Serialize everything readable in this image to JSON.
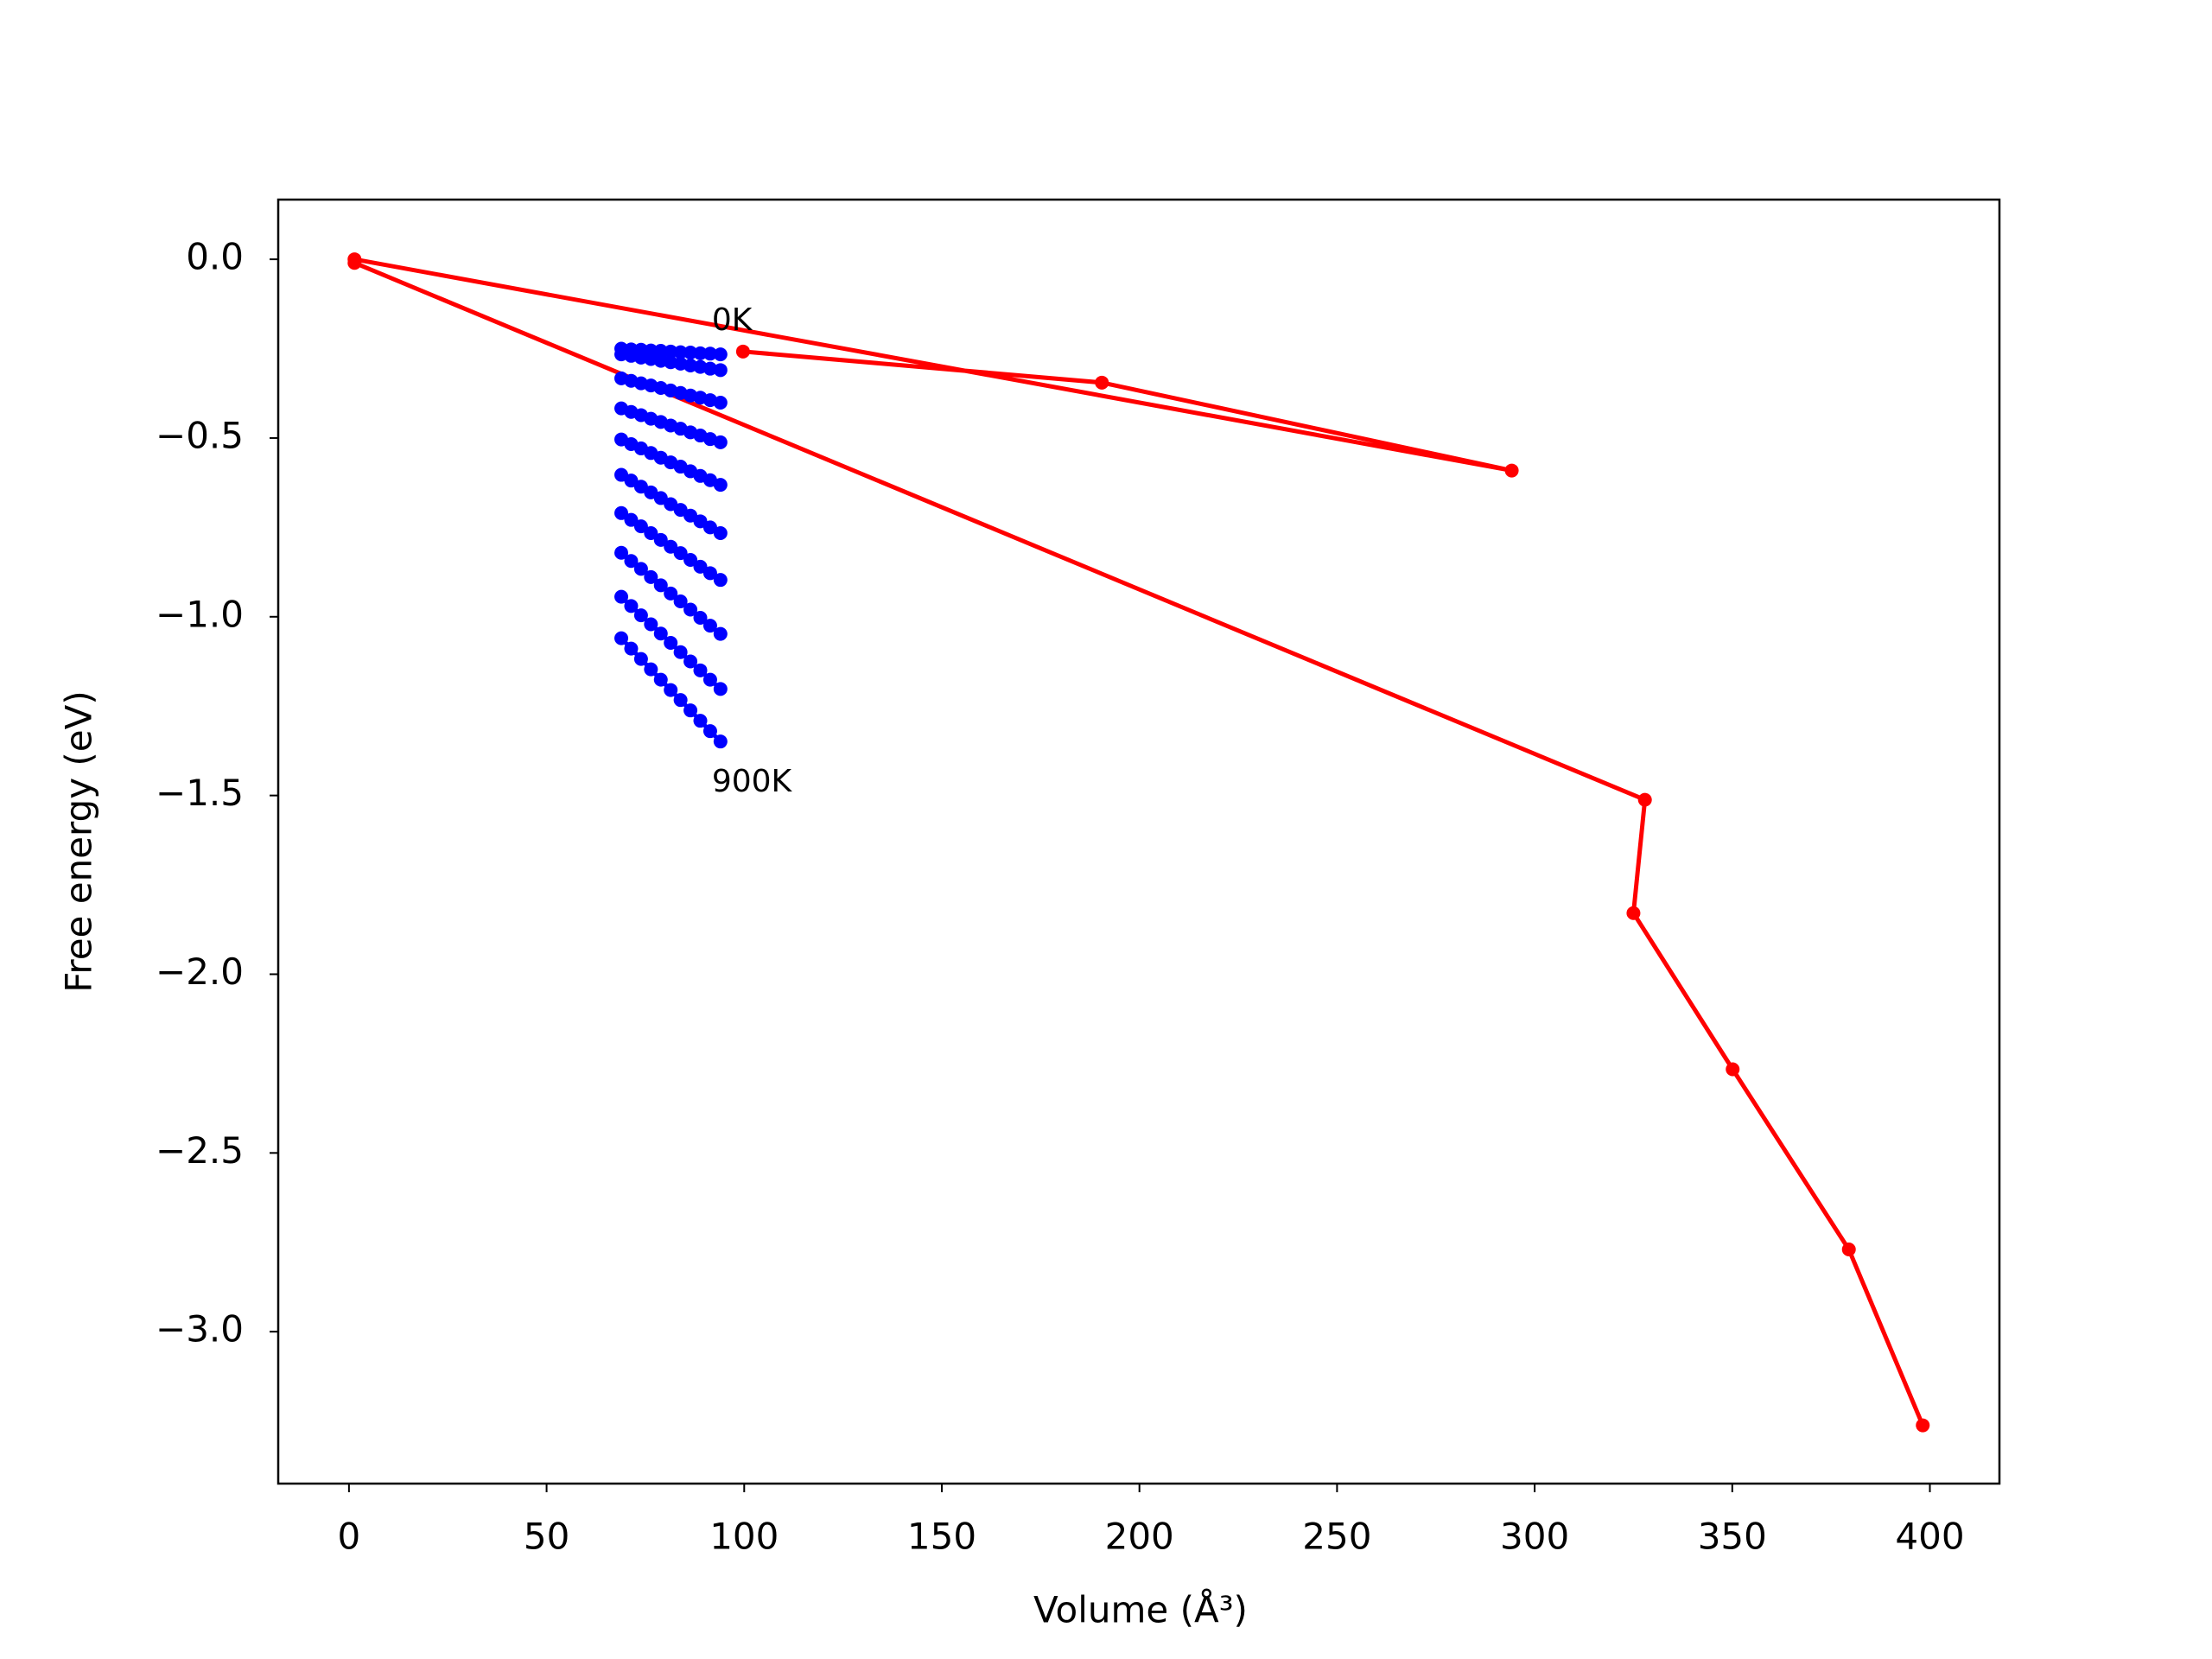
{
  "chart_data": {
    "type": "line",
    "x_label": "Volume (Å³)",
    "y_label": "Free energy (eV)",
    "xlim": [
      -17.9,
      417.6
    ],
    "ylim": [
      -3.425,
      0.167
    ],
    "xticks": [
      0,
      50,
      100,
      150,
      200,
      250,
      300,
      350,
      400
    ],
    "yticks": [
      {
        "value": 0,
        "label": "0.0"
      },
      {
        "value": -0.5,
        "label": "−0.5"
      },
      {
        "value": -1,
        "label": "−1.0"
      },
      {
        "value": -1.5,
        "label": "−1.5"
      },
      {
        "value": -2,
        "label": "−2.0"
      },
      {
        "value": -2.5,
        "label": "−2.5"
      },
      {
        "value": -3,
        "label": "−3.0"
      }
    ],
    "annotations": [
      "0K",
      "900K"
    ],
    "series": [
      {
        "color": "#ff0000",
        "x": [
          99.7,
          190.5,
          294.2,
          1.4,
          1.4,
          327.9,
          325.0,
          350.1,
          379.5,
          398.2
        ],
        "values": [
          -0.258,
          -0.345,
          -0.591,
          0,
          -0.01,
          -1.512,
          -1.829,
          -2.266,
          -2.77,
          -3.262
        ]
      },
      {
        "color": "#0000ff",
        "x": [
          68.9,
          71.4,
          73.9,
          76.4,
          78.9,
          81.4,
          83.9,
          86.4,
          88.9,
          91.4,
          94.0
        ],
        "values": [
          -0.25,
          -0.252,
          -0.253,
          -0.255,
          -0.256,
          -0.258,
          -0.26,
          -0.261,
          -0.263,
          -0.264,
          -0.266
        ]
      },
      {
        "color": "#0000ff",
        "x": [
          68.9,
          71.4,
          73.9,
          76.4,
          78.9,
          81.4,
          83.9,
          86.4,
          88.9,
          91.4,
          94.0
        ],
        "values": [
          -0.266,
          -0.27,
          -0.275,
          -0.279,
          -0.284,
          -0.288,
          -0.292,
          -0.297,
          -0.301,
          -0.306,
          -0.31
        ]
      },
      {
        "color": "#0000ff",
        "x": [
          68.9,
          71.4,
          73.9,
          76.4,
          78.9,
          81.4,
          83.9,
          86.4,
          88.9,
          91.4,
          94.0
        ],
        "values": [
          -0.333,
          -0.34,
          -0.347,
          -0.353,
          -0.36,
          -0.367,
          -0.374,
          -0.381,
          -0.387,
          -0.394,
          -0.401
        ]
      },
      {
        "color": "#0000ff",
        "x": [
          68.9,
          71.4,
          73.9,
          76.4,
          78.9,
          81.4,
          83.9,
          86.4,
          88.9,
          91.4,
          94.0
        ],
        "values": [
          -0.417,
          -0.427,
          -0.436,
          -0.446,
          -0.455,
          -0.465,
          -0.474,
          -0.484,
          -0.493,
          -0.503,
          -0.512
        ]
      },
      {
        "color": "#0000ff",
        "x": [
          68.9,
          71.4,
          73.9,
          76.4,
          78.9,
          81.4,
          83.9,
          86.4,
          88.9,
          91.4,
          94.0
        ],
        "values": [
          -0.504,
          -0.517,
          -0.529,
          -0.542,
          -0.555,
          -0.568,
          -0.58,
          -0.593,
          -0.606,
          -0.618,
          -0.631
        ]
      },
      {
        "color": "#0000ff",
        "x": [
          68.9,
          71.4,
          73.9,
          76.4,
          78.9,
          81.4,
          83.9,
          86.4,
          88.9,
          91.4,
          94.0
        ],
        "values": [
          -0.603,
          -0.619,
          -0.636,
          -0.652,
          -0.668,
          -0.685,
          -0.701,
          -0.717,
          -0.733,
          -0.75,
          -0.766
        ]
      },
      {
        "color": "#0000ff",
        "x": [
          68.9,
          71.4,
          73.9,
          76.4,
          78.9,
          81.4,
          83.9,
          86.4,
          88.9,
          91.4,
          94.0
        ],
        "values": [
          -0.71,
          -0.729,
          -0.747,
          -0.766,
          -0.785,
          -0.804,
          -0.822,
          -0.841,
          -0.86,
          -0.878,
          -0.897
        ]
      },
      {
        "color": "#0000ff",
        "x": [
          68.9,
          71.4,
          73.9,
          76.4,
          78.9,
          81.4,
          83.9,
          86.4,
          88.9,
          91.4,
          94.0
        ],
        "values": [
          -0.821,
          -0.844,
          -0.866,
          -0.889,
          -0.912,
          -0.935,
          -0.957,
          -0.98,
          -1.003,
          -1.025,
          -1.048
        ]
      },
      {
        "color": "#0000ff",
        "x": [
          68.9,
          71.4,
          73.9,
          76.4,
          78.9,
          81.4,
          83.9,
          86.4,
          88.9,
          91.4,
          94.0
        ],
        "values": [
          -0.944,
          -0.97,
          -0.996,
          -1.021,
          -1.047,
          -1.073,
          -1.099,
          -1.125,
          -1.15,
          -1.176,
          -1.202
        ]
      },
      {
        "color": "#0000ff",
        "x": [
          68.9,
          71.4,
          73.9,
          76.4,
          78.9,
          81.4,
          83.9,
          86.4,
          88.9,
          91.4,
          94.0
        ],
        "values": [
          -1.06,
          -1.089,
          -1.118,
          -1.147,
          -1.176,
          -1.205,
          -1.233,
          -1.262,
          -1.291,
          -1.32,
          -1.349
        ]
      }
    ]
  }
}
